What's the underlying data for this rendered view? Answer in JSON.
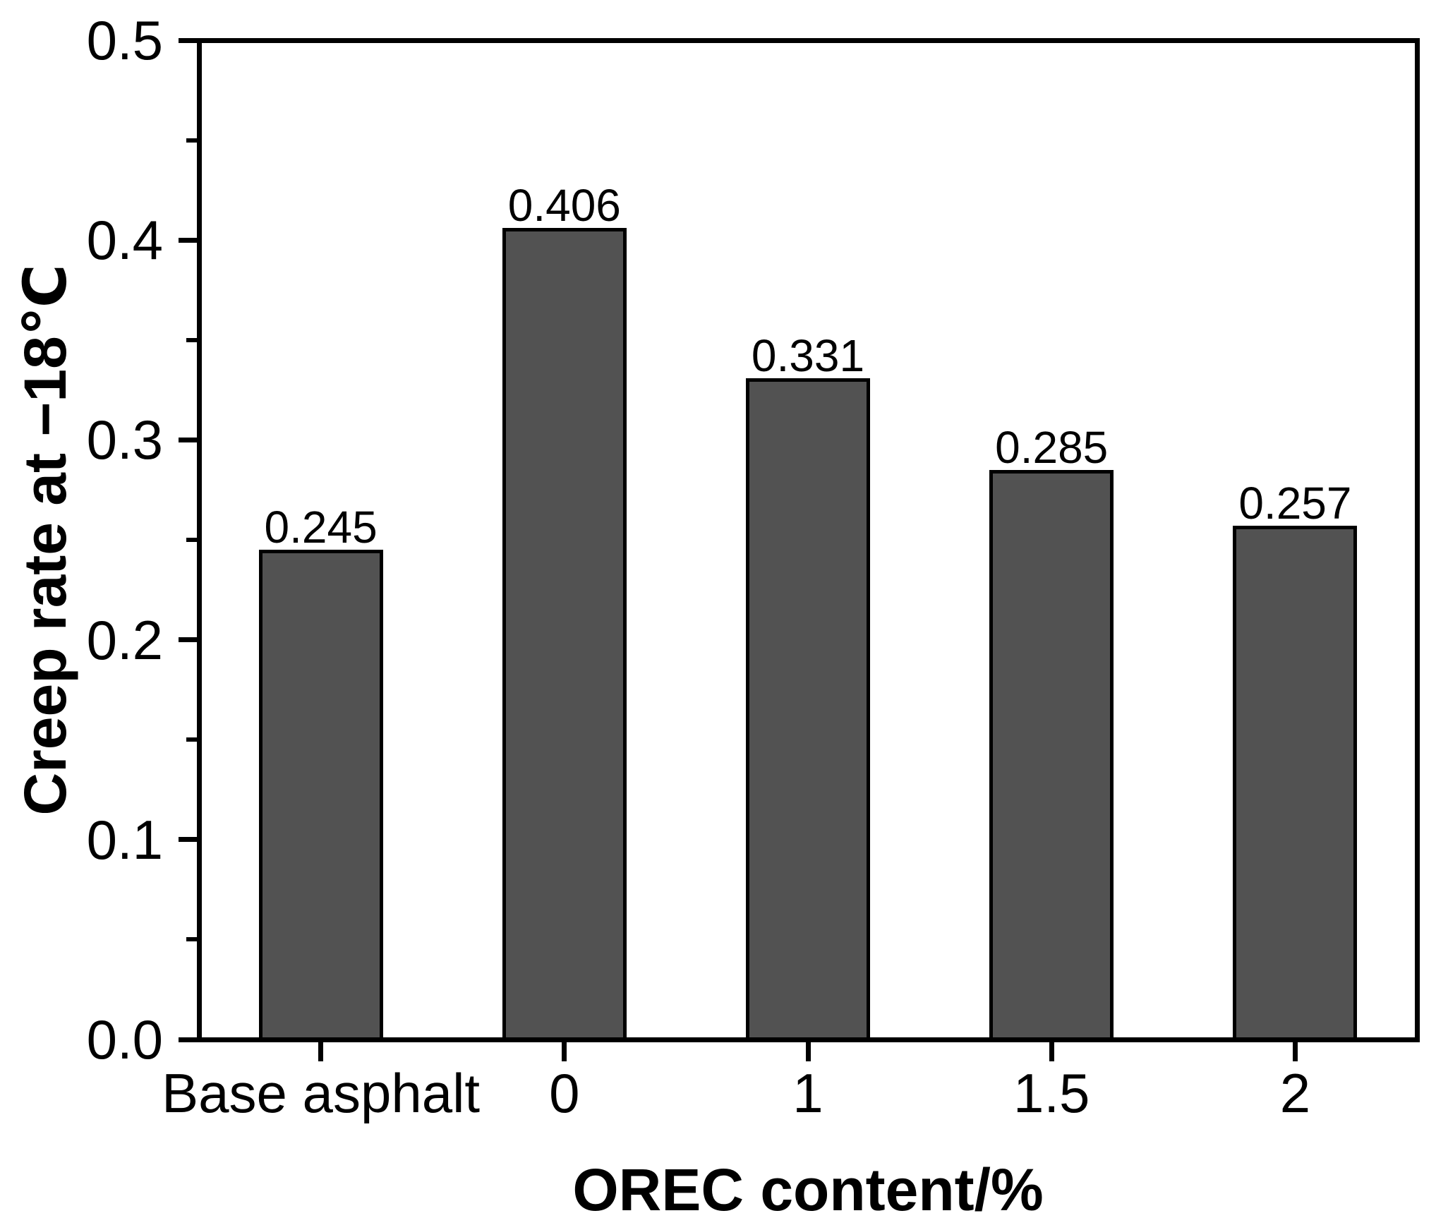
{
  "chart_data": {
    "type": "bar",
    "title": "",
    "xlabel": "OREC content/%",
    "ylabel": "Creep rate at −18℃",
    "categories": [
      "Base asphalt",
      "0",
      "1",
      "1.5",
      "2"
    ],
    "values": [
      0.245,
      0.406,
      0.331,
      0.285,
      0.257
    ],
    "bar_value_labels": [
      "0.245",
      "0.406",
      "0.331",
      "0.285",
      "0.257"
    ],
    "ylim": [
      0.0,
      0.5
    ],
    "y_major_tick_values": [
      0.0,
      0.1,
      0.2,
      0.3,
      0.4,
      0.5
    ],
    "y_tick_labels": [
      "0.0",
      "0.1",
      "0.2",
      "0.3",
      "0.4",
      "0.5"
    ],
    "y_minor_tick_step": 0.05,
    "grid": "off",
    "legend": "none",
    "bar_color": "#525252",
    "bar_edge_color": "#000000",
    "axis_color": "#000000",
    "text_color": "#000000",
    "background_color": "#ffffff"
  }
}
